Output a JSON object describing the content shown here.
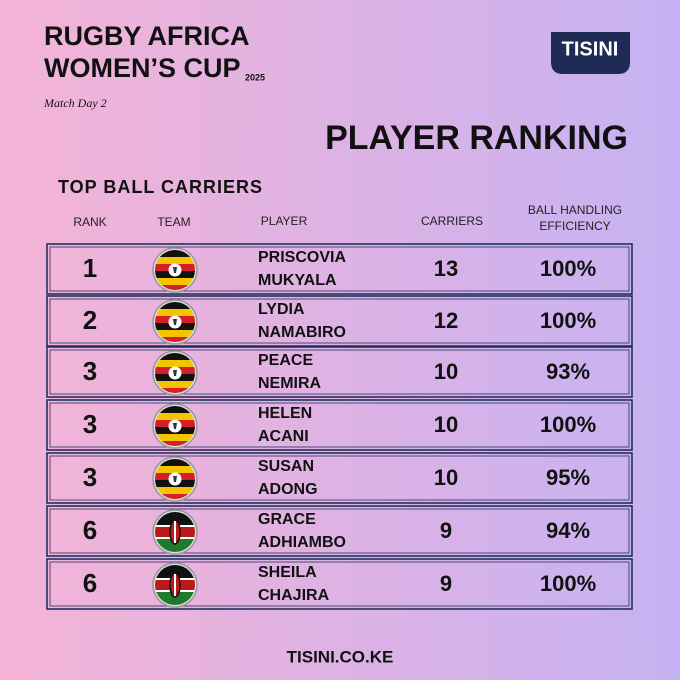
{
  "header": {
    "title_lines": [
      "RUGBY AFRICA",
      "WOMEN’S CUP"
    ],
    "year": "2025",
    "subtitle": "Match Day 2",
    "logo": "TISINI",
    "heading": "PLAYER RANKING"
  },
  "table": {
    "title": "TOP BALL CARRIERS",
    "columns": [
      "RANK",
      "TEAM",
      "PLAYER",
      "CARRIERS",
      [
        "BALL HANDLING",
        "EFFICIENCY"
      ]
    ],
    "rows": [
      [
        1,
        [
          "PRISCOVIA",
          "MUKYALA"
        ],
        13,
        "100%"
      ],
      [
        2,
        [
          "LYDIA",
          "NAMABIRO"
        ],
        12,
        "100%"
      ],
      [
        3,
        [
          "PEACE",
          "NEMIRA"
        ],
        10,
        "93%"
      ],
      [
        3,
        [
          "HELEN",
          "ACANI"
        ],
        10,
        "100%"
      ],
      [
        3,
        [
          "SUSAN",
          "ADONG"
        ],
        10,
        "95%"
      ],
      [
        6,
        [
          "GRACE",
          "ADHIAMBO"
        ],
        9,
        "94%"
      ],
      [
        6,
        [
          "SHEILA",
          "CHAJIRA"
        ],
        9,
        "100%"
      ]
    ]
  },
  "footer": "TISINI.CO.KE"
}
